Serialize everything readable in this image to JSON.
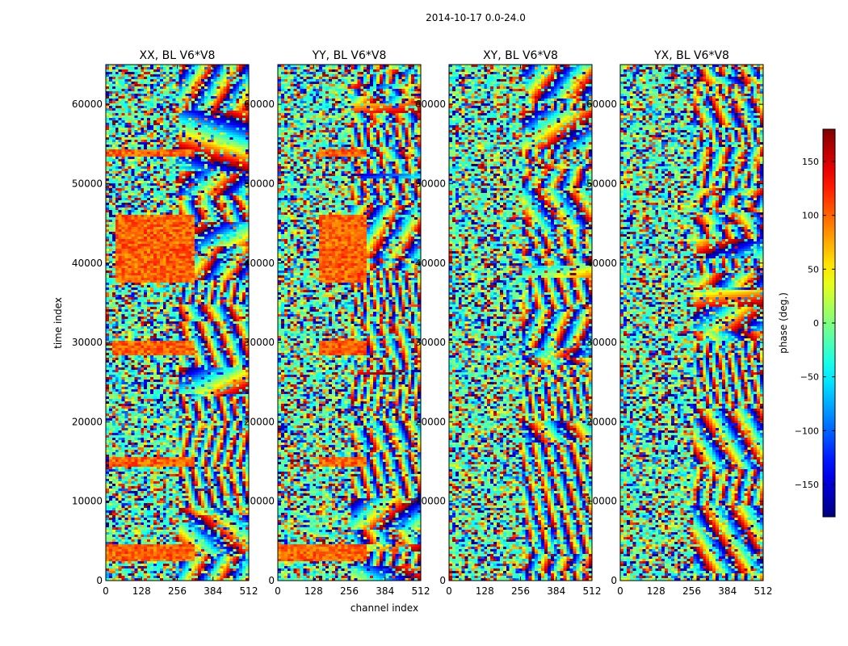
{
  "chart_data": {
    "type": "heatmap",
    "suptitle": "2014-10-17 0.0-24.0",
    "xlabel": "channel index",
    "ylabel": "time index",
    "xlim": [
      0,
      512
    ],
    "ylim": [
      0,
      65000
    ],
    "xticks": [
      0,
      128,
      256,
      384,
      512
    ],
    "yticks": [
      0,
      10000,
      20000,
      30000,
      40000,
      50000,
      60000
    ],
    "colormap": "jet",
    "colorbar": {
      "label": "phase (deg.)",
      "range": [
        -180,
        180
      ],
      "ticks": [
        -150,
        -100,
        -50,
        0,
        50,
        100,
        150
      ],
      "tick_labels": [
        "−150",
        "−100",
        "−50",
        "0",
        "50",
        "100",
        "150"
      ]
    },
    "panels": [
      {
        "title": "XX, BL V6*V8",
        "polarization": "XX",
        "coherent_bands": [
          [
            37500,
            46000,
            30,
            320
          ],
          [
            28500,
            30200,
            20,
            320
          ],
          [
            14200,
            15600,
            10,
            320
          ],
          [
            2300,
            4600,
            0,
            320
          ],
          [
            53500,
            54400,
            0,
            320
          ]
        ]
      },
      {
        "title": "YY, BL V6*V8",
        "polarization": "YY",
        "coherent_bands": [
          [
            37500,
            46000,
            150,
            320
          ],
          [
            28500,
            30200,
            150,
            320
          ],
          [
            14200,
            15600,
            150,
            320
          ],
          [
            2300,
            4600,
            0,
            320
          ],
          [
            53500,
            54400,
            150,
            320
          ]
        ]
      },
      {
        "title": "XY, BL V6*V8",
        "polarization": "XY",
        "coherent_bands": []
      },
      {
        "title": "YX, BL V6*V8",
        "polarization": "YX",
        "coherent_bands": []
      }
    ]
  }
}
